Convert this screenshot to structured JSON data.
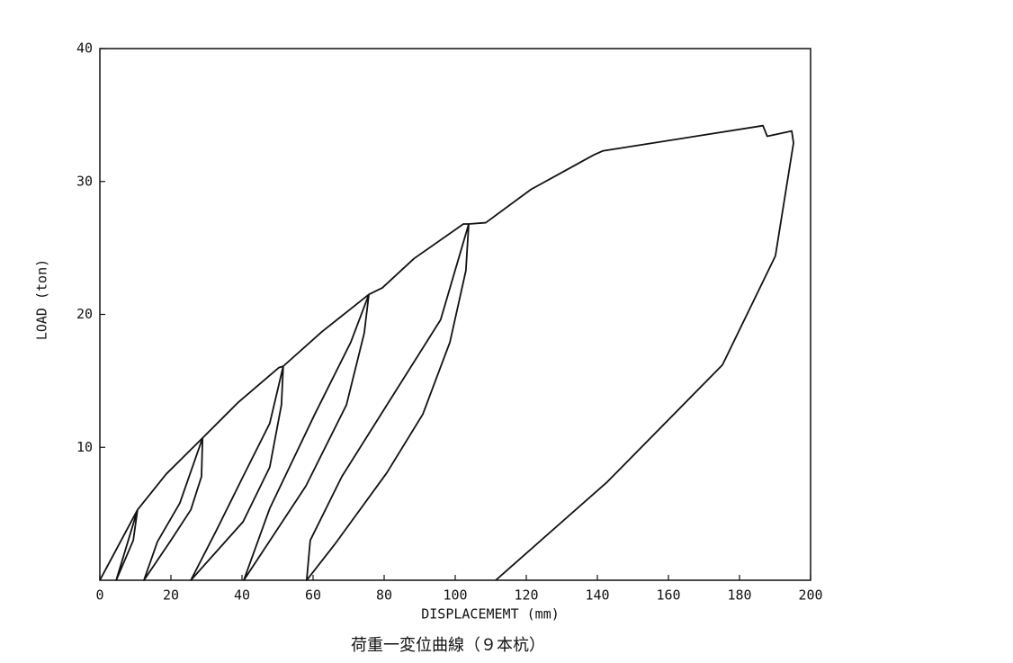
{
  "chart_data": {
    "type": "line",
    "caption": "荷重一変位曲線（９本杭）",
    "x_label": "DISPLACEMEMT (mm)",
    "y_label": "LOAD (ton)",
    "xlim": [
      0,
      200
    ],
    "xticks": [
      0,
      20,
      40,
      60,
      80,
      100,
      120,
      140,
      160,
      180,
      200
    ],
    "ylim": [
      0,
      40
    ],
    "yticks": [
      10,
      20,
      30,
      40
    ],
    "color": "#111111",
    "x": [
      0,
      10.6,
      4.6,
      9.4,
      10.6,
      18.7,
      28.9,
      28.6,
      25.6,
      20.0,
      12.4,
      16.2,
      22.5,
      28.9,
      39.0,
      50.4,
      51.6,
      51.1,
      47.8,
      40.3,
      25.6,
      32.7,
      40.3,
      47.8,
      51.6,
      62.5,
      75.7,
      74.4,
      69.4,
      58.0,
      40.5,
      47.8,
      60.5,
      70.6,
      75.7,
      79.5,
      88.4,
      102.3,
      103.8,
      103.0,
      98.5,
      90.9,
      80.8,
      66.1,
      58.2,
      59.2,
      68.1,
      80.8,
      95.9,
      103.8,
      108.6,
      121.3,
      139.0,
      141.5,
      186.6,
      187.8,
      194.7,
      195.2,
      190.1,
      175.2,
      142.8,
      111.4
    ],
    "values": [
      0,
      5.3,
      0,
      3.0,
      5.3,
      8.0,
      10.7,
      7.8,
      5.3,
      3.0,
      0,
      2.9,
      5.8,
      10.7,
      13.4,
      16.0,
      16.1,
      13.2,
      8.5,
      4.4,
      0,
      3.7,
      7.8,
      11.8,
      16.1,
      18.7,
      21.5,
      18.6,
      13.2,
      7.1,
      0,
      5.4,
      12.5,
      17.9,
      21.5,
      22.0,
      24.2,
      26.8,
      26.8,
      23.3,
      17.9,
      12.5,
      8.1,
      2.7,
      0,
      3.0,
      7.8,
      13.2,
      19.6,
      26.8,
      26.9,
      29.4,
      32.0,
      32.3,
      34.2,
      33.4,
      33.8,
      32.9,
      24.4,
      16.2,
      7.4,
      0
    ]
  }
}
